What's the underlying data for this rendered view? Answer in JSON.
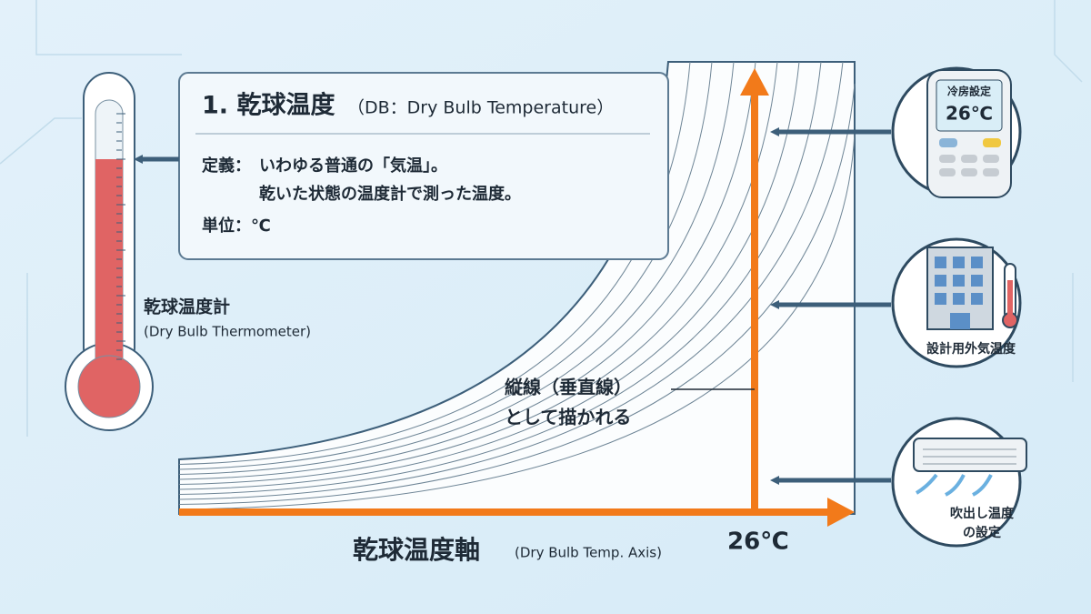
{
  "heading": {
    "number_title": "1. 乾球温度",
    "subtitle": "（DB：Dry Bulb Temperature）"
  },
  "definition": {
    "label": "定義：",
    "lines": [
      "いわゆる普通の「気温」。",
      "乾いた状態の温度計で測った温度。"
    ]
  },
  "unit": "単位：℃",
  "thermometer": {
    "label": "乾球温度計",
    "sublabel": "(Dry Bulb Thermometer)"
  },
  "note": {
    "lines": [
      "縦線（垂直線）",
      "として描かれる"
    ]
  },
  "axis": {
    "label": "乾球温度軸",
    "sublabel": "(Dry Bulb Temp. Axis)",
    "marker": "26℃"
  },
  "examples": [
    {
      "lines": [
        "冷房設定",
        "26℃"
      ]
    },
    {
      "lines": [
        "設計用外気温度"
      ]
    },
    {
      "lines": [
        "吹出し温度",
        "の設定"
      ]
    }
  ]
}
